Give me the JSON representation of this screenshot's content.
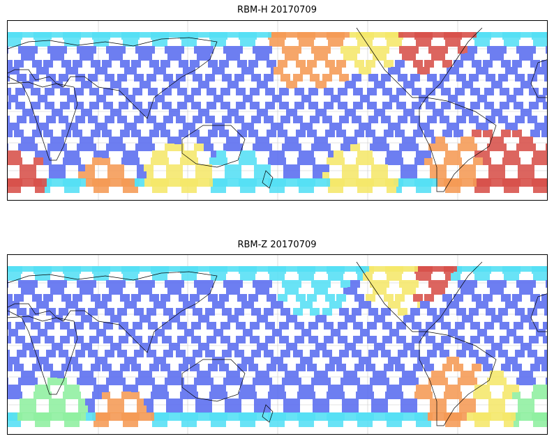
{
  "panels": [
    {
      "id": "rbm-h",
      "title": "RBM-H 20170709",
      "colormap": "jet",
      "hot_regions": [
        "north-pacific-top",
        "north-atlantic-top",
        "south-atlantic-bottom",
        "southern-ocean-bottom"
      ]
    },
    {
      "id": "rbm-z",
      "title": "RBM-Z 20170709",
      "colormap": "jet",
      "hot_regions": [
        "north-atlantic-top",
        "south-atlantic-mid"
      ]
    }
  ],
  "colors": {
    "track_base": "#5a6df0",
    "track_cyan": "#55e0f5",
    "track_green": "#8ff0a0",
    "track_yellow": "#f5e86a",
    "track_orange": "#f59a55",
    "track_red": "#d8504a",
    "coast": "#000000",
    "grid": "#c8c8c8"
  }
}
